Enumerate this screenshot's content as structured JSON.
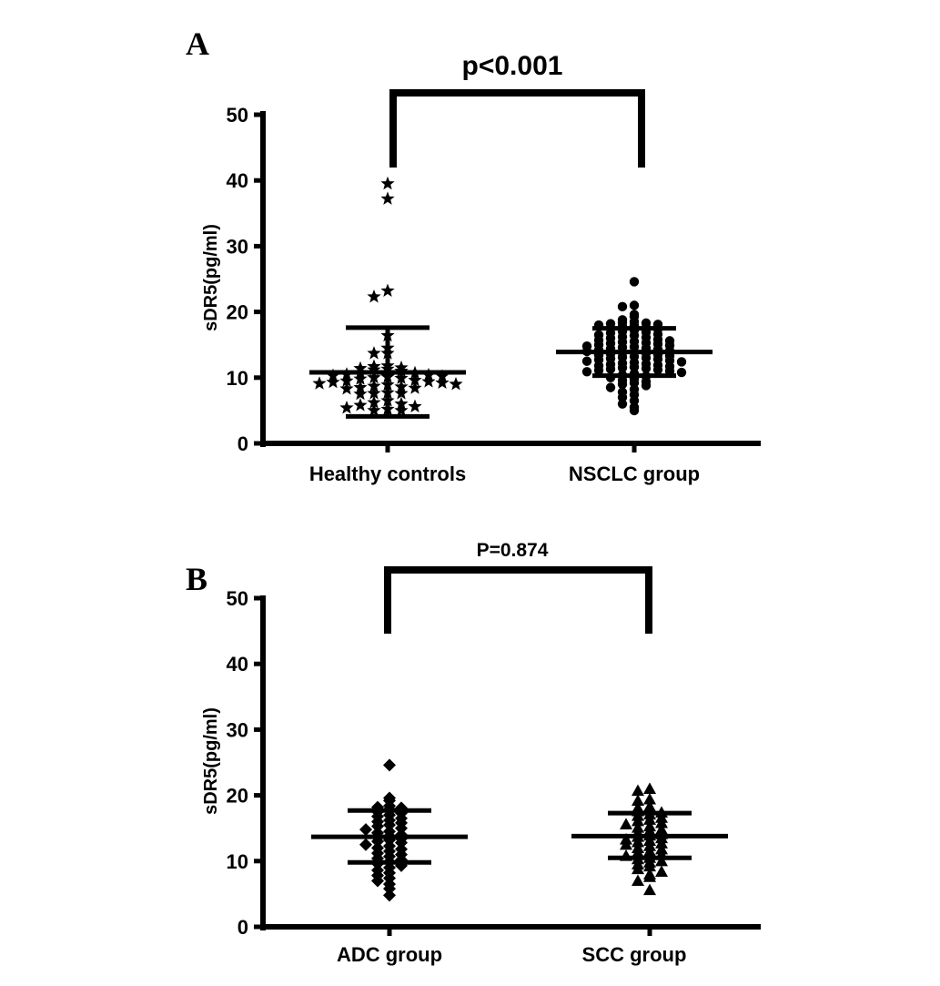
{
  "chart_data": [
    {
      "type": "scatter",
      "panel_label": "A",
      "ylabel": "sDR5(pg/ml)",
      "ylim": [
        0,
        50
      ],
      "yticks": [
        0,
        10,
        20,
        30,
        40,
        50
      ],
      "categories": [
        "Healthy controls",
        "NSCLC group"
      ],
      "comparison": "p<0.001",
      "series": [
        {
          "marker": "star",
          "mean": 10.8,
          "sd_upper": 17.6,
          "sd_lower": 4.1,
          "values": [
            39.5,
            37.2,
            23.2,
            22.3,
            16.4,
            14.5,
            13.7,
            13.7,
            11.8,
            11.7,
            11.5,
            11.4,
            11.3,
            11.2,
            11.0,
            10.8,
            10.7,
            10.5,
            10.4,
            10.3,
            10.2,
            10.1,
            10.0,
            9.9,
            9.8,
            9.6,
            9.5,
            9.4,
            9.3,
            9.2,
            9.1,
            9.0,
            8.9,
            8.7,
            8.6,
            8.5,
            8.4,
            8.3,
            7.7,
            7.6,
            7.6,
            7.5,
            6.5,
            6.2,
            6.0,
            5.8,
            5.6,
            5.4,
            5.2,
            5.0,
            5.0
          ]
        },
        {
          "marker": "circle",
          "mean": 13.9,
          "sd_upper": 17.5,
          "sd_lower": 10.3,
          "values": [
            24.6,
            21.0,
            20.8,
            19.6,
            19.3,
            18.8,
            18.5,
            18.4,
            18.3,
            18.2,
            18.1,
            18.0,
            17.9,
            17.8,
            17.6,
            17.5,
            17.4,
            17.2,
            17.0,
            16.9,
            16.8,
            16.6,
            16.5,
            16.4,
            16.2,
            16.1,
            16.0,
            15.8,
            15.7,
            15.6,
            15.5,
            15.4,
            15.3,
            15.2,
            15.1,
            15.0,
            14.9,
            14.8,
            14.7,
            14.6,
            14.5,
            14.4,
            14.3,
            14.2,
            14.1,
            14.0,
            13.9,
            13.8,
            13.7,
            13.6,
            13.5,
            13.4,
            13.3,
            13.2,
            13.1,
            13.0,
            12.9,
            12.8,
            12.7,
            12.6,
            12.5,
            12.4,
            12.3,
            12.2,
            12.1,
            12.0,
            11.9,
            11.8,
            11.7,
            11.6,
            11.5,
            11.4,
            11.3,
            11.2,
            11.1,
            11.0,
            10.9,
            10.8,
            10.6,
            10.4,
            10.2,
            10.0,
            9.8,
            9.6,
            9.4,
            9.2,
            9.0,
            8.8,
            8.5,
            8.2,
            7.8,
            7.4,
            7.0,
            6.5,
            6.0,
            5.5,
            5.0
          ]
        }
      ]
    },
    {
      "type": "scatter",
      "panel_label": "B",
      "ylabel": "sDR5(pg/ml)",
      "ylim": [
        0,
        50
      ],
      "yticks": [
        0,
        10,
        20,
        30,
        40,
        50
      ],
      "categories": [
        "ADC group",
        "SCC group"
      ],
      "comparison": "P=0.874",
      "series": [
        {
          "marker": "diamond",
          "mean": 13.7,
          "sd_upper": 17.7,
          "sd_lower": 9.8,
          "values": [
            24.6,
            19.6,
            19.2,
            18.4,
            18.2,
            18.1,
            17.9,
            17.5,
            17.3,
            17.0,
            16.8,
            16.5,
            16.2,
            16.0,
            15.8,
            15.5,
            15.3,
            15.0,
            14.8,
            14.5,
            14.3,
            14.0,
            13.8,
            13.6,
            13.4,
            13.2,
            13.0,
            12.8,
            12.5,
            12.3,
            12.0,
            11.8,
            11.5,
            11.2,
            11.0,
            10.7,
            10.4,
            10.2,
            9.9,
            9.6,
            9.3,
            9.0,
            8.6,
            8.2,
            7.8,
            7.4,
            7.0,
            6.5,
            5.8,
            4.8
          ]
        },
        {
          "marker": "triangle",
          "mean": 13.8,
          "sd_upper": 17.3,
          "sd_lower": 10.5,
          "values": [
            21.0,
            20.7,
            19.4,
            19.2,
            18.3,
            18.1,
            17.9,
            17.6,
            17.4,
            17.1,
            16.9,
            16.6,
            16.3,
            16.1,
            15.8,
            15.6,
            15.3,
            15.1,
            14.8,
            14.6,
            14.3,
            14.1,
            13.9,
            13.7,
            13.5,
            13.3,
            13.1,
            12.9,
            12.7,
            12.5,
            12.3,
            12.0,
            11.8,
            11.5,
            11.3,
            11.0,
            10.8,
            10.5,
            10.3,
            10.0,
            9.8,
            9.5,
            9.2,
            8.8,
            8.4,
            8.0,
            7.6,
            7.0,
            5.6
          ]
        }
      ]
    }
  ]
}
